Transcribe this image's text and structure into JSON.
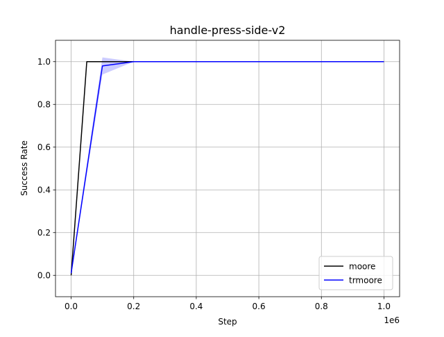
{
  "chart_data": {
    "type": "line",
    "title": "handle-press-side-v2",
    "xlabel": "Step",
    "ylabel": "Success Rate",
    "x_offset_label": "1e6",
    "xlim": [
      -50000,
      1050000
    ],
    "ylim": [
      -0.1,
      1.1
    ],
    "x_ticks": [
      0,
      200000,
      400000,
      600000,
      800000,
      1000000
    ],
    "x_tick_labels": [
      "0.0",
      "0.2",
      "0.4",
      "0.6",
      "0.8",
      "1.0"
    ],
    "y_ticks": [
      0.0,
      0.2,
      0.4,
      0.6,
      0.8,
      1.0
    ],
    "y_tick_labels": [
      "0.0",
      "0.2",
      "0.4",
      "0.6",
      "0.8",
      "1.0"
    ],
    "grid": true,
    "legend_position": "lower-right",
    "series": [
      {
        "name": "moore",
        "color": "#000000",
        "x": [
          0,
          50000,
          100000,
          150000,
          200000,
          250000,
          300000,
          350000,
          400000,
          450000,
          500000,
          550000,
          600000,
          650000,
          700000,
          750000,
          800000,
          850000,
          900000,
          950000,
          1000000
        ],
        "y": [
          0.0,
          1.0,
          1.0,
          1.0,
          1.0,
          1.0,
          1.0,
          1.0,
          1.0,
          1.0,
          1.0,
          1.0,
          1.0,
          1.0,
          1.0,
          1.0,
          1.0,
          1.0,
          1.0,
          1.0,
          1.0
        ],
        "band_lower": [
          0.0,
          1.0,
          1.0,
          1.0,
          1.0,
          1.0,
          1.0,
          1.0,
          1.0,
          1.0,
          1.0,
          1.0,
          1.0,
          1.0,
          1.0,
          1.0,
          1.0,
          1.0,
          1.0,
          1.0,
          1.0
        ],
        "band_upper": [
          0.0,
          1.0,
          1.0,
          1.0,
          1.0,
          1.0,
          1.0,
          1.0,
          1.0,
          1.0,
          1.0,
          1.0,
          1.0,
          1.0,
          1.0,
          1.0,
          1.0,
          1.0,
          1.0,
          1.0,
          1.0
        ]
      },
      {
        "name": "trmoore",
        "color": "#0000ff",
        "band_color": "#0000ff",
        "x": [
          0,
          100000,
          200000,
          250000,
          300000,
          350000,
          400000,
          450000,
          500000,
          550000,
          600000,
          650000,
          700000,
          750000,
          800000,
          850000,
          900000,
          950000,
          1000000
        ],
        "y": [
          0.01,
          0.98,
          1.0,
          1.0,
          1.0,
          1.0,
          1.0,
          1.0,
          1.0,
          1.0,
          1.0,
          1.0,
          1.0,
          1.0,
          1.0,
          1.0,
          1.0,
          1.0,
          1.0
        ],
        "band_lower": [
          0.0,
          0.94,
          1.0,
          1.0,
          1.0,
          1.0,
          1.0,
          1.0,
          1.0,
          1.0,
          1.0,
          1.0,
          1.0,
          1.0,
          1.0,
          1.0,
          1.0,
          1.0,
          1.0
        ],
        "band_upper": [
          0.02,
          1.02,
          1.0,
          1.0,
          1.0,
          1.0,
          1.0,
          1.0,
          1.0,
          1.0,
          1.0,
          1.0,
          1.0,
          1.0,
          1.0,
          1.0,
          1.0,
          1.0,
          1.0
        ]
      }
    ]
  }
}
